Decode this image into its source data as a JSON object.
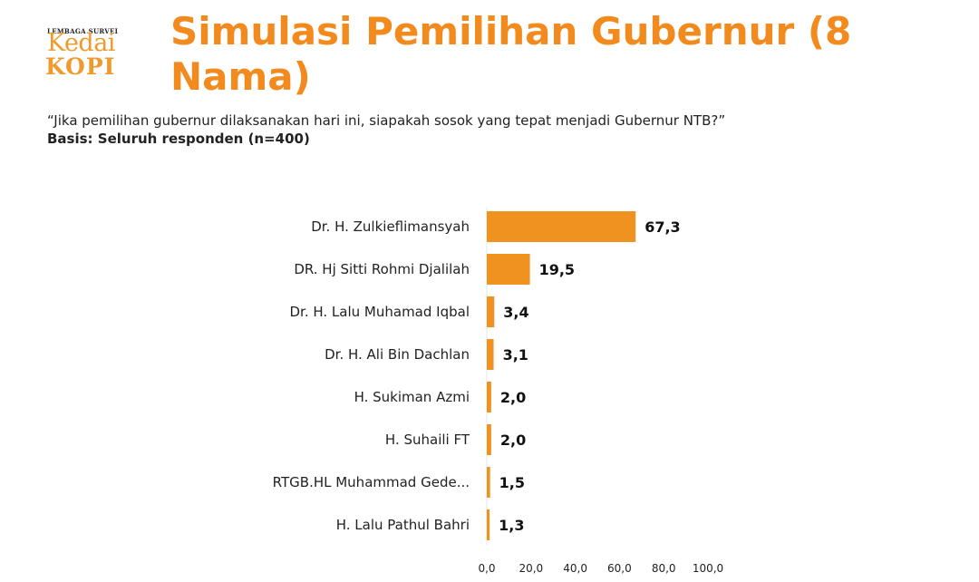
{
  "logo": {
    "line1": "LEMBAGA SURVEI",
    "line2": "Kedai",
    "line3": "KOPI"
  },
  "title": "Simulasi Pemilihan Gubernur (8 Nama)",
  "question": "“Jika pemilihan gubernur dilaksanakan hari ini, siapakah sosok yang tepat menjadi Gubernur NTB?”",
  "basis": "Basis: Seluruh responden (n=400)",
  "colors": {
    "bar": "#f0921f",
    "title": "#f28a1d"
  },
  "chart_data": {
    "type": "bar",
    "orientation": "horizontal",
    "categories": [
      "Dr. H. Zulkieflimansyah",
      "DR. Hj Sitti Rohmi Djalilah",
      "Dr. H. Lalu Muhamad Iqbal",
      "Dr. H. Ali Bin Dachlan",
      "H. Sukiman Azmi",
      "H. Suhaili FT",
      "RTGB.HL Muhammad Gede...",
      "H. Lalu Pathul Bahri"
    ],
    "values": [
      67.3,
      19.5,
      3.4,
      3.1,
      2.0,
      2.0,
      1.5,
      1.3
    ],
    "value_labels": [
      "67,3",
      "19,5",
      "3,4",
      "3,1",
      "2,0",
      "2,0",
      "1,5",
      "1,3"
    ],
    "xlim": [
      0,
      100
    ],
    "xticks": [
      0,
      20,
      40,
      60,
      80,
      100
    ],
    "xtick_labels": [
      "0,0",
      "20,0",
      "40,0",
      "60,0",
      "80,0",
      "100,0"
    ],
    "grid": false,
    "legend": "none"
  }
}
